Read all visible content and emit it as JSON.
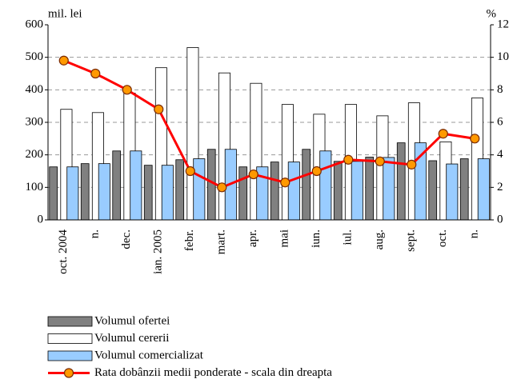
{
  "chart_data": {
    "type": "bar",
    "y_label": "mil. lei",
    "y2_label": "%",
    "categories": [
      "oct. 2004",
      "n.",
      "dec.",
      "ian. 2005",
      "febr.",
      "mart.",
      "apr.",
      "mai",
      "iun.",
      "iul.",
      "aug.",
      "sept.",
      "oct.",
      "n."
    ],
    "series": [
      {
        "name": "Volumul ofertei",
        "color": "#808080",
        "values": [
          163,
          173,
          212,
          168,
          185,
          217,
          163,
          178,
          217,
          180,
          193,
          237,
          182,
          188
        ]
      },
      {
        "name": "Volumul cererii",
        "color": "#ffffff",
        "values": [
          340,
          330,
          390,
          468,
          530,
          452,
          420,
          355,
          325,
          355,
          320,
          360,
          240,
          375
        ]
      },
      {
        "name": "Volumul comercializat",
        "color": "#99ccff",
        "values": [
          163,
          173,
          212,
          168,
          188,
          217,
          163,
          178,
          212,
          180,
          192,
          237,
          172,
          188
        ]
      },
      {
        "name": "Rata dobânzii medii ponderate  - scala din dreapta",
        "type": "line",
        "axis": "y2",
        "color": "#ff0000",
        "marker_color": "#ff9900",
        "values": [
          9.8,
          9.0,
          8.0,
          6.8,
          3.0,
          2.0,
          2.8,
          2.3,
          3.0,
          3.7,
          3.6,
          3.4,
          5.3,
          5.0
        ]
      }
    ],
    "ylim": [
      0,
      600
    ],
    "yticks": [
      0,
      100,
      200,
      300,
      400,
      500,
      600
    ],
    "y2lim": [
      0,
      12
    ],
    "y2ticks": [
      0,
      2,
      4,
      6,
      8,
      10,
      12
    ],
    "grid": true,
    "legend": "bottom"
  }
}
